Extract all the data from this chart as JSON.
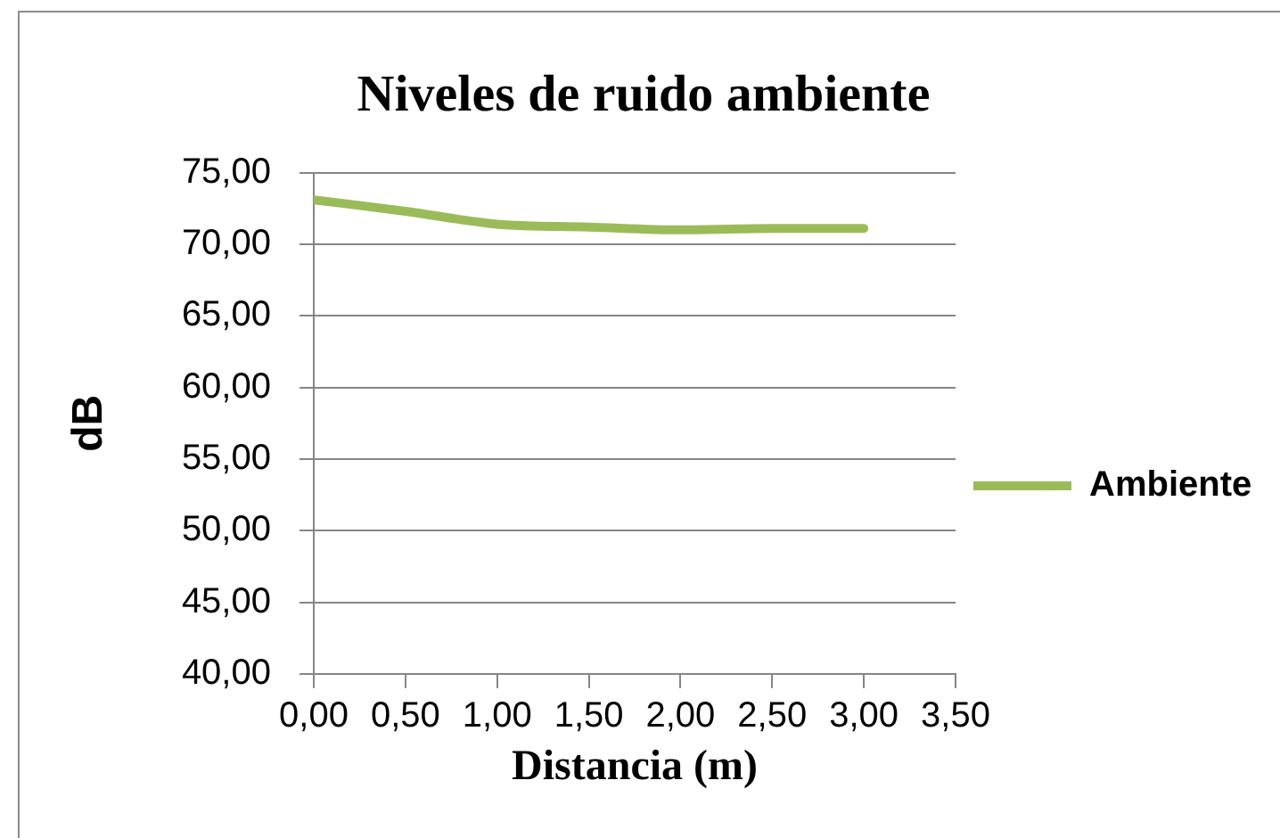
{
  "chart_data": {
    "type": "line",
    "title": "Niveles de ruido ambiente",
    "xlabel": "Distancia (m)",
    "ylabel": "dB",
    "x": [
      0,
      0.5,
      1,
      1.5,
      2,
      2.5,
      3
    ],
    "series": [
      {
        "name": "Ambiente",
        "color": "#9bbb59",
        "values": [
          73.1,
          72.3,
          71.4,
          71.2,
          71.0,
          71.1,
          71.1
        ]
      }
    ],
    "xlim": [
      0,
      3.5
    ],
    "xticks": [
      {
        "value": 0,
        "label": "0,00"
      },
      {
        "value": 0.5,
        "label": "0,50"
      },
      {
        "value": 1,
        "label": "1,00"
      },
      {
        "value": 1.5,
        "label": "1,50"
      },
      {
        "value": 2,
        "label": "2,00"
      },
      {
        "value": 2.5,
        "label": "2,50"
      },
      {
        "value": 3,
        "label": "3,00"
      },
      {
        "value": 3.5,
        "label": "3,50"
      }
    ],
    "ylim": [
      40,
      75
    ],
    "yticks": [
      {
        "value": 40,
        "label": "40,00"
      },
      {
        "value": 45,
        "label": "45,00"
      },
      {
        "value": 50,
        "label": "50,00"
      },
      {
        "value": 55,
        "label": "55,00"
      },
      {
        "value": 60,
        "label": "60,00"
      },
      {
        "value": 65,
        "label": "65,00"
      },
      {
        "value": 70,
        "label": "70,00"
      },
      {
        "value": 75,
        "label": "75,00"
      }
    ],
    "grid": "y",
    "legend": "right",
    "marker": "none"
  }
}
